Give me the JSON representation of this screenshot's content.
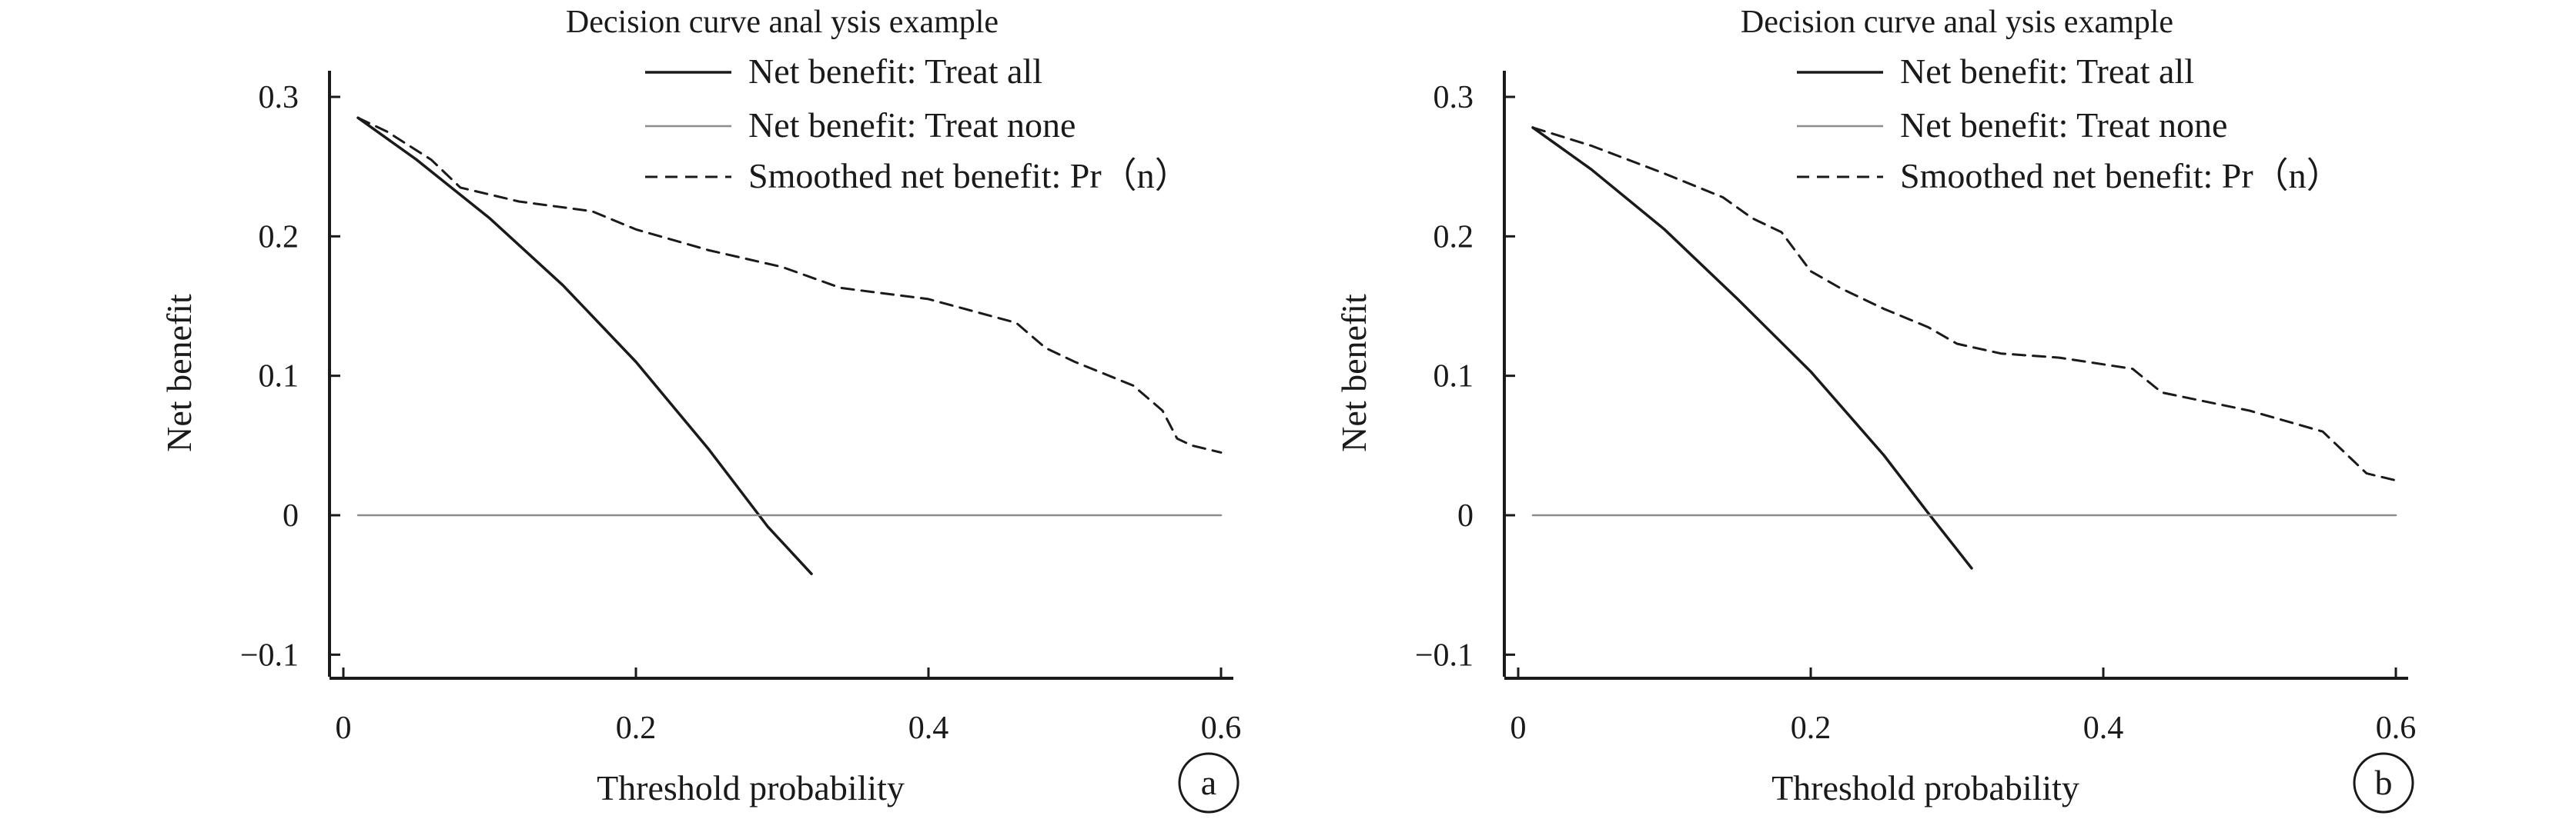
{
  "chart_data": [
    {
      "type": "line",
      "panel_label": "a",
      "title": "Decision curve anal ysis example",
      "xlabel": "Threshold probability",
      "ylabel": "Net benefit",
      "xlim": [
        0,
        0.6
      ],
      "ylim": [
        -0.12,
        0.32
      ],
      "xticks": [
        0,
        0.2,
        0.4,
        0.6
      ],
      "xtick_labels": [
        "0",
        "0.2",
        "0.4",
        "0.6"
      ],
      "yticks": [
        -0.1,
        0,
        0.1,
        0.2,
        0.3
      ],
      "ytick_labels": [
        "−0.1",
        "0",
        "0.1",
        "0.2",
        "0.3"
      ],
      "legend_position": "top-right",
      "grid": false,
      "series": [
        {
          "name": "Net benefit: Treat all",
          "style": "solid",
          "color": "#1a1a1a",
          "x": [
            0.01,
            0.05,
            0.1,
            0.15,
            0.2,
            0.25,
            0.29,
            0.32
          ],
          "y": [
            0.285,
            0.255,
            0.213,
            0.165,
            0.11,
            0.047,
            -0.008,
            -0.042
          ]
        },
        {
          "name": "Net benefit: Treat none",
          "style": "solid",
          "color": "#8c8c8c",
          "x": [
            0.01,
            0.6
          ],
          "y": [
            0,
            0
          ]
        },
        {
          "name": "Smoothed net benefit: Pr（n）",
          "style": "dashed",
          "color": "#1a1a1a",
          "x": [
            0.01,
            0.03,
            0.06,
            0.08,
            0.12,
            0.17,
            0.2,
            0.25,
            0.3,
            0.34,
            0.4,
            0.46,
            0.48,
            0.5,
            0.54,
            0.56,
            0.57,
            0.58,
            0.6
          ],
          "y": [
            0.285,
            0.275,
            0.255,
            0.235,
            0.225,
            0.218,
            0.205,
            0.19,
            0.178,
            0.163,
            0.155,
            0.138,
            0.12,
            0.11,
            0.093,
            0.075,
            0.055,
            0.05,
            0.045
          ]
        }
      ]
    },
    {
      "type": "line",
      "panel_label": "b",
      "title": "Decision curve anal ysis example",
      "xlabel": "Threshold probability",
      "ylabel": "Net benefit",
      "xlim": [
        0,
        0.6
      ],
      "ylim": [
        -0.12,
        0.32
      ],
      "xticks": [
        0,
        0.2,
        0.4,
        0.6
      ],
      "xtick_labels": [
        "0",
        "0.2",
        "0.4",
        "0.6"
      ],
      "yticks": [
        -0.1,
        0,
        0.1,
        0.2,
        0.3
      ],
      "ytick_labels": [
        "−0.1",
        "0",
        "0.1",
        "0.2",
        "0.3"
      ],
      "legend_position": "top-right",
      "grid": false,
      "series": [
        {
          "name": "Net benefit: Treat all",
          "style": "solid",
          "color": "#1a1a1a",
          "x": [
            0.01,
            0.05,
            0.1,
            0.15,
            0.2,
            0.25,
            0.28,
            0.31
          ],
          "y": [
            0.278,
            0.248,
            0.205,
            0.155,
            0.103,
            0.043,
            0.002,
            -0.038
          ]
        },
        {
          "name": "Net benefit: Treat none",
          "style": "solid",
          "color": "#8c8c8c",
          "x": [
            0.01,
            0.6
          ],
          "y": [
            0,
            0
          ]
        },
        {
          "name": "Smoothed net benefit: Pr（n）",
          "style": "dashed",
          "color": "#1a1a1a",
          "x": [
            0.01,
            0.05,
            0.1,
            0.14,
            0.16,
            0.18,
            0.2,
            0.22,
            0.25,
            0.28,
            0.3,
            0.33,
            0.37,
            0.42,
            0.44,
            0.5,
            0.55,
            0.57,
            0.58,
            0.6
          ],
          "y": [
            0.278,
            0.265,
            0.245,
            0.228,
            0.213,
            0.203,
            0.175,
            0.163,
            0.148,
            0.135,
            0.123,
            0.116,
            0.113,
            0.105,
            0.088,
            0.075,
            0.06,
            0.04,
            0.03,
            0.025
          ]
        }
      ]
    }
  ]
}
